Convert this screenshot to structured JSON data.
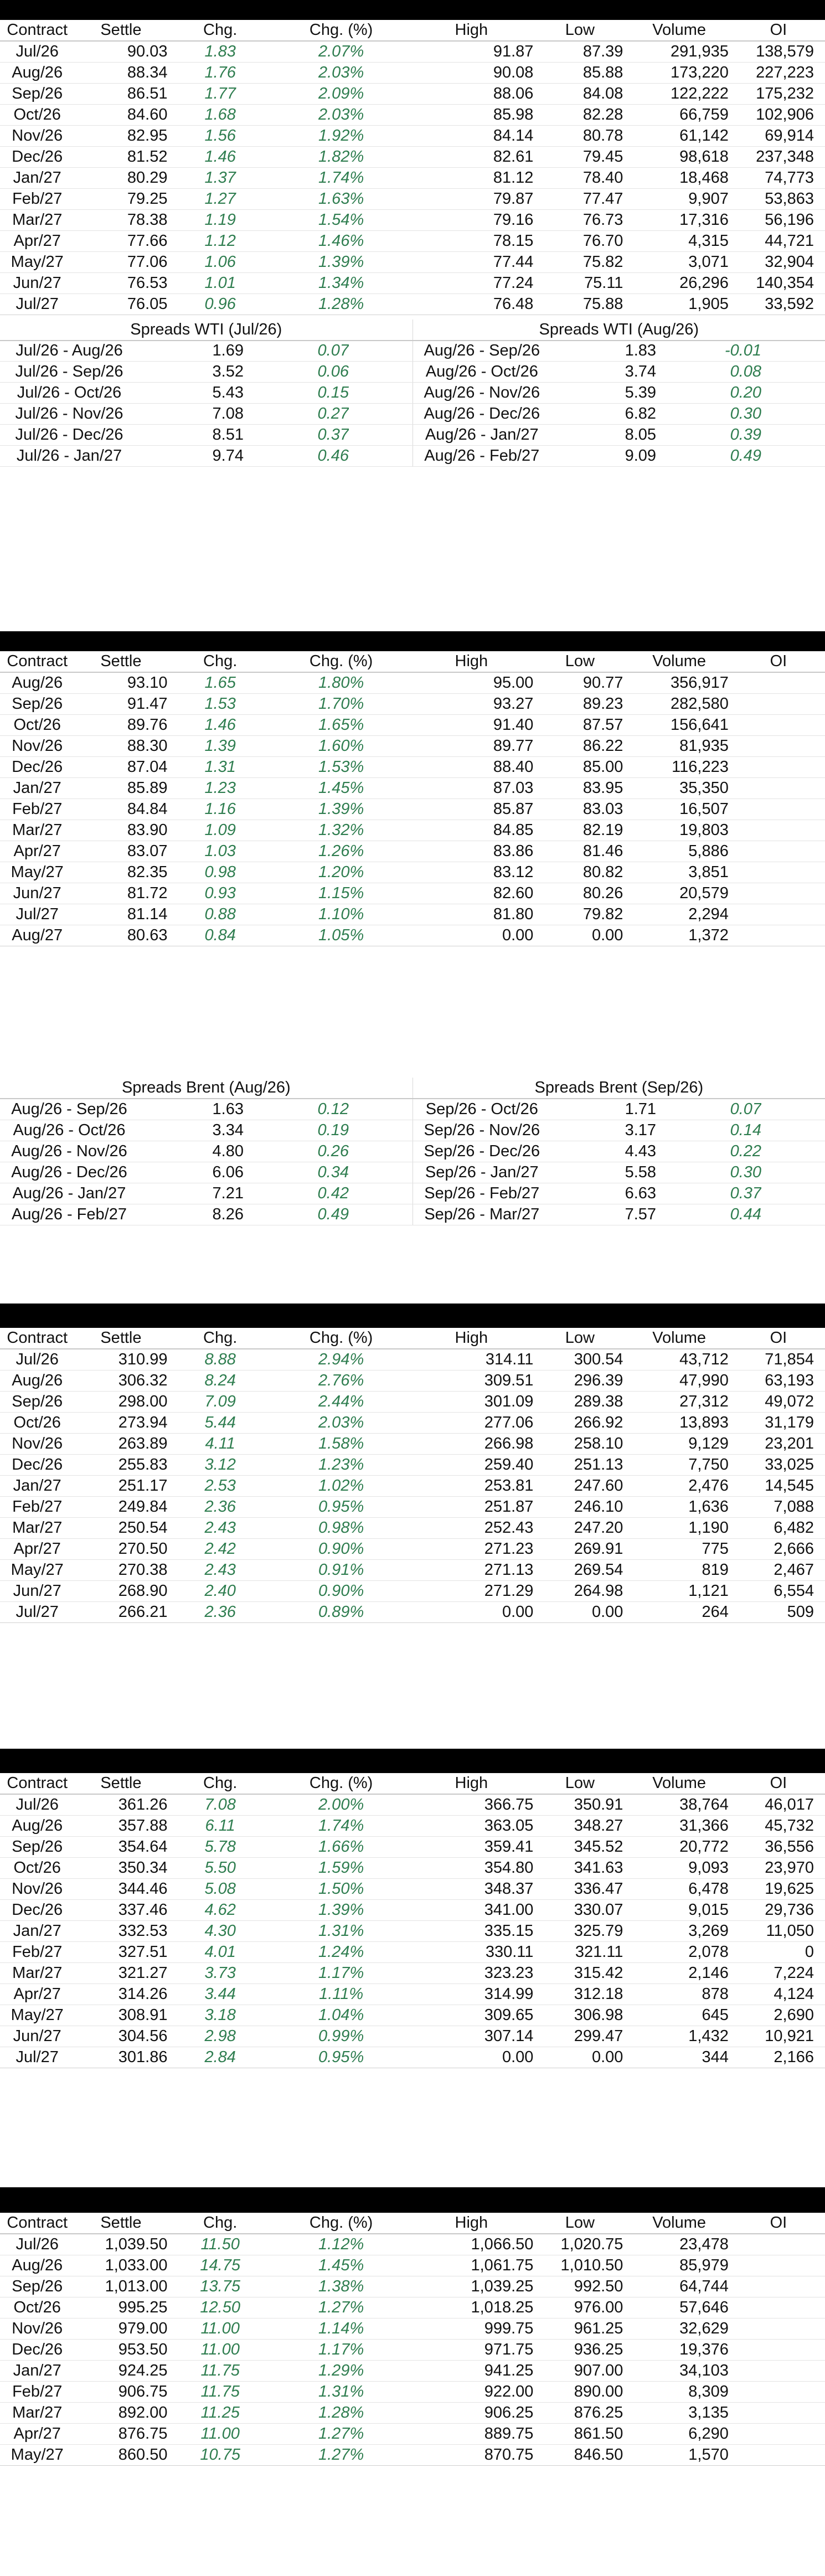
{
  "headers": [
    "Contract",
    "Settle",
    "Chg.",
    "Chg. (%)",
    "High",
    "Low",
    "Volume",
    "OI"
  ],
  "wti": {
    "rows": [
      [
        "Jul/26",
        "90.03",
        "1.83",
        "2.07%",
        "91.87",
        "87.39",
        "291,935",
        "138,579"
      ],
      [
        "Aug/26",
        "88.34",
        "1.76",
        "2.03%",
        "90.08",
        "85.88",
        "173,220",
        "227,223"
      ],
      [
        "Sep/26",
        "86.51",
        "1.77",
        "2.09%",
        "88.06",
        "84.08",
        "122,222",
        "175,232"
      ],
      [
        "Oct/26",
        "84.60",
        "1.68",
        "2.03%",
        "85.98",
        "82.28",
        "66,759",
        "102,906"
      ],
      [
        "Nov/26",
        "82.95",
        "1.56",
        "1.92%",
        "84.14",
        "80.78",
        "61,142",
        "69,914"
      ],
      [
        "Dec/26",
        "81.52",
        "1.46",
        "1.82%",
        "82.61",
        "79.45",
        "98,618",
        "237,348"
      ],
      [
        "Jan/27",
        "80.29",
        "1.37",
        "1.74%",
        "81.12",
        "78.40",
        "18,468",
        "74,773"
      ],
      [
        "Feb/27",
        "79.25",
        "1.27",
        "1.63%",
        "79.87",
        "77.47",
        "9,907",
        "53,863"
      ],
      [
        "Mar/27",
        "78.38",
        "1.19",
        "1.54%",
        "79.16",
        "76.73",
        "17,316",
        "56,196"
      ],
      [
        "Apr/27",
        "77.66",
        "1.12",
        "1.46%",
        "78.15",
        "76.70",
        "4,315",
        "44,721"
      ],
      [
        "May/27",
        "77.06",
        "1.06",
        "1.39%",
        "77.44",
        "75.82",
        "3,071",
        "32,904"
      ],
      [
        "Jun/27",
        "76.53",
        "1.01",
        "1.34%",
        "77.24",
        "75.11",
        "26,296",
        "140,354"
      ],
      [
        "Jul/27",
        "76.05",
        "0.96",
        "1.28%",
        "76.48",
        "75.88",
        "1,905",
        "33,592"
      ]
    ],
    "spreads": {
      "left_title": "Spreads WTI (Jul/26)",
      "right_title": "Spreads WTI (Aug/26)",
      "left": [
        [
          "Jul/26 - Aug/26",
          "1.69",
          "0.07"
        ],
        [
          "Jul/26 - Sep/26",
          "3.52",
          "0.06"
        ],
        [
          "Jul/26 - Oct/26",
          "5.43",
          "0.15"
        ],
        [
          "Jul/26 - Nov/26",
          "7.08",
          "0.27"
        ],
        [
          "Jul/26 - Dec/26",
          "8.51",
          "0.37"
        ],
        [
          "Jul/26 - Jan/27",
          "9.74",
          "0.46"
        ]
      ],
      "right": [
        [
          "Aug/26 - Sep/26",
          "1.83",
          "-0.01"
        ],
        [
          "Aug/26 - Oct/26",
          "3.74",
          "0.08"
        ],
        [
          "Aug/26 - Nov/26",
          "5.39",
          "0.20"
        ],
        [
          "Aug/26 - Dec/26",
          "6.82",
          "0.30"
        ],
        [
          "Aug/26 - Jan/27",
          "8.05",
          "0.39"
        ],
        [
          "Aug/26 - Feb/27",
          "9.09",
          "0.49"
        ]
      ]
    }
  },
  "brent": {
    "rows": [
      [
        "Aug/26",
        "93.10",
        "1.65",
        "1.80%",
        "95.00",
        "90.77",
        "356,917",
        ""
      ],
      [
        "Sep/26",
        "91.47",
        "1.53",
        "1.70%",
        "93.27",
        "89.23",
        "282,580",
        ""
      ],
      [
        "Oct/26",
        "89.76",
        "1.46",
        "1.65%",
        "91.40",
        "87.57",
        "156,641",
        ""
      ],
      [
        "Nov/26",
        "88.30",
        "1.39",
        "1.60%",
        "89.77",
        "86.22",
        "81,935",
        ""
      ],
      [
        "Dec/26",
        "87.04",
        "1.31",
        "1.53%",
        "88.40",
        "85.00",
        "116,223",
        ""
      ],
      [
        "Jan/27",
        "85.89",
        "1.23",
        "1.45%",
        "87.03",
        "83.95",
        "35,350",
        ""
      ],
      [
        "Feb/27",
        "84.84",
        "1.16",
        "1.39%",
        "85.87",
        "83.03",
        "16,507",
        ""
      ],
      [
        "Mar/27",
        "83.90",
        "1.09",
        "1.32%",
        "84.85",
        "82.19",
        "19,803",
        ""
      ],
      [
        "Apr/27",
        "83.07",
        "1.03",
        "1.26%",
        "83.86",
        "81.46",
        "5,886",
        ""
      ],
      [
        "May/27",
        "82.35",
        "0.98",
        "1.20%",
        "83.12",
        "80.82",
        "3,851",
        ""
      ],
      [
        "Jun/27",
        "81.72",
        "0.93",
        "1.15%",
        "82.60",
        "80.26",
        "20,579",
        ""
      ],
      [
        "Jul/27",
        "81.14",
        "0.88",
        "1.10%",
        "81.80",
        "79.82",
        "2,294",
        ""
      ],
      [
        "Aug/27",
        "80.63",
        "0.84",
        "1.05%",
        "0.00",
        "0.00",
        "1,372",
        ""
      ]
    ],
    "spreads": {
      "left_title": "Spreads Brent (Aug/26)",
      "right_title": "Spreads Brent (Sep/26)",
      "left": [
        [
          "Aug/26 - Sep/26",
          "1.63",
          "0.12"
        ],
        [
          "Aug/26 - Oct/26",
          "3.34",
          "0.19"
        ],
        [
          "Aug/26 - Nov/26",
          "4.80",
          "0.26"
        ],
        [
          "Aug/26 - Dec/26",
          "6.06",
          "0.34"
        ],
        [
          "Aug/26 - Jan/27",
          "7.21",
          "0.42"
        ],
        [
          "Aug/26 - Feb/27",
          "8.26",
          "0.49"
        ]
      ],
      "right": [
        [
          "Sep/26 - Oct/26",
          "1.71",
          "0.07"
        ],
        [
          "Sep/26 - Nov/26",
          "3.17",
          "0.14"
        ],
        [
          "Sep/26 - Dec/26",
          "4.43",
          "0.22"
        ],
        [
          "Sep/26 - Jan/27",
          "5.58",
          "0.30"
        ],
        [
          "Sep/26 - Feb/27",
          "6.63",
          "0.37"
        ],
        [
          "Sep/26 - Mar/27",
          "7.57",
          "0.44"
        ]
      ]
    }
  },
  "table3": {
    "rows": [
      [
        "Jul/26",
        "310.99",
        "8.88",
        "2.94%",
        "314.11",
        "300.54",
        "43,712",
        "71,854"
      ],
      [
        "Aug/26",
        "306.32",
        "8.24",
        "2.76%",
        "309.51",
        "296.39",
        "47,990",
        "63,193"
      ],
      [
        "Sep/26",
        "298.00",
        "7.09",
        "2.44%",
        "301.09",
        "289.38",
        "27,312",
        "49,072"
      ],
      [
        "Oct/26",
        "273.94",
        "5.44",
        "2.03%",
        "277.06",
        "266.92",
        "13,893",
        "31,179"
      ],
      [
        "Nov/26",
        "263.89",
        "4.11",
        "1.58%",
        "266.98",
        "258.10",
        "9,129",
        "23,201"
      ],
      [
        "Dec/26",
        "255.83",
        "3.12",
        "1.23%",
        "259.40",
        "251.13",
        "7,750",
        "33,025"
      ],
      [
        "Jan/27",
        "251.17",
        "2.53",
        "1.02%",
        "253.81",
        "247.60",
        "2,476",
        "14,545"
      ],
      [
        "Feb/27",
        "249.84",
        "2.36",
        "0.95%",
        "251.87",
        "246.10",
        "1,636",
        "7,088"
      ],
      [
        "Mar/27",
        "250.54",
        "2.43",
        "0.98%",
        "252.43",
        "247.20",
        "1,190",
        "6,482"
      ],
      [
        "Apr/27",
        "270.50",
        "2.42",
        "0.90%",
        "271.23",
        "269.91",
        "775",
        "2,666"
      ],
      [
        "May/27",
        "270.38",
        "2.43",
        "0.91%",
        "271.13",
        "269.54",
        "819",
        "2,467"
      ],
      [
        "Jun/27",
        "268.90",
        "2.40",
        "0.90%",
        "271.29",
        "264.98",
        "1,121",
        "6,554"
      ],
      [
        "Jul/27",
        "266.21",
        "2.36",
        "0.89%",
        "0.00",
        "0.00",
        "264",
        "509"
      ]
    ]
  },
  "table4": {
    "rows": [
      [
        "Jul/26",
        "361.26",
        "7.08",
        "2.00%",
        "366.75",
        "350.91",
        "38,764",
        "46,017"
      ],
      [
        "Aug/26",
        "357.88",
        "6.11",
        "1.74%",
        "363.05",
        "348.27",
        "31,366",
        "45,732"
      ],
      [
        "Sep/26",
        "354.64",
        "5.78",
        "1.66%",
        "359.41",
        "345.52",
        "20,772",
        "36,556"
      ],
      [
        "Oct/26",
        "350.34",
        "5.50",
        "1.59%",
        "354.80",
        "341.63",
        "9,093",
        "23,970"
      ],
      [
        "Nov/26",
        "344.46",
        "5.08",
        "1.50%",
        "348.37",
        "336.47",
        "6,478",
        "19,625"
      ],
      [
        "Dec/26",
        "337.46",
        "4.62",
        "1.39%",
        "341.00",
        "330.07",
        "9,015",
        "29,736"
      ],
      [
        "Jan/27",
        "332.53",
        "4.30",
        "1.31%",
        "335.15",
        "325.79",
        "3,269",
        "11,050"
      ],
      [
        "Feb/27",
        "327.51",
        "4.01",
        "1.24%",
        "330.11",
        "321.11",
        "2,078",
        "0"
      ],
      [
        "Mar/27",
        "321.27",
        "3.73",
        "1.17%",
        "323.23",
        "315.42",
        "2,146",
        "7,224"
      ],
      [
        "Apr/27",
        "314.26",
        "3.44",
        "1.11%",
        "314.99",
        "312.18",
        "878",
        "4,124"
      ],
      [
        "May/27",
        "308.91",
        "3.18",
        "1.04%",
        "309.65",
        "306.98",
        "645",
        "2,690"
      ],
      [
        "Jun/27",
        "304.56",
        "2.98",
        "0.99%",
        "307.14",
        "299.47",
        "1,432",
        "10,921"
      ],
      [
        "Jul/27",
        "301.86",
        "2.84",
        "0.95%",
        "0.00",
        "0.00",
        "344",
        "2,166"
      ]
    ]
  },
  "table5": {
    "rows": [
      [
        "Jul/26",
        "1,039.50",
        "11.50",
        "1.12%",
        "1,066.50",
        "1,020.75",
        "23,478",
        ""
      ],
      [
        "Aug/26",
        "1,033.00",
        "14.75",
        "1.45%",
        "1,061.75",
        "1,010.50",
        "85,979",
        ""
      ],
      [
        "Sep/26",
        "1,013.00",
        "13.75",
        "1.38%",
        "1,039.25",
        "992.50",
        "64,744",
        ""
      ],
      [
        "Oct/26",
        "995.25",
        "12.50",
        "1.27%",
        "1,018.25",
        "976.00",
        "57,646",
        ""
      ],
      [
        "Nov/26",
        "979.00",
        "11.00",
        "1.14%",
        "999.75",
        "961.25",
        "32,629",
        ""
      ],
      [
        "Dec/26",
        "953.50",
        "11.00",
        "1.17%",
        "971.75",
        "936.25",
        "19,376",
        ""
      ],
      [
        "Jan/27",
        "924.25",
        "11.75",
        "1.29%",
        "941.25",
        "907.00",
        "34,103",
        ""
      ],
      [
        "Feb/27",
        "906.75",
        "11.75",
        "1.31%",
        "922.00",
        "890.00",
        "8,309",
        ""
      ],
      [
        "Mar/27",
        "892.00",
        "11.25",
        "1.28%",
        "906.25",
        "876.25",
        "3,135",
        ""
      ],
      [
        "Apr/27",
        "876.75",
        "11.00",
        "1.27%",
        "889.75",
        "861.50",
        "6,290",
        ""
      ],
      [
        "May/27",
        "860.50",
        "10.75",
        "1.27%",
        "870.75",
        "846.50",
        "1,570",
        ""
      ]
    ]
  },
  "colors": {
    "positive": "#2e7d4f",
    "header_bar": "#000000"
  }
}
